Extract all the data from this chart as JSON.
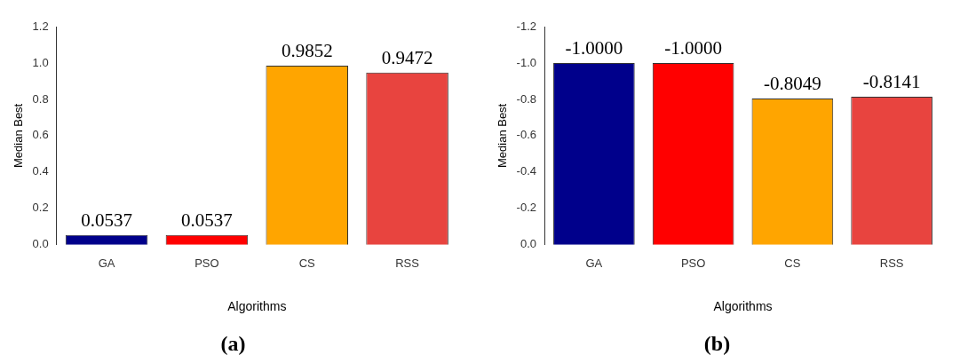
{
  "chart_data": [
    {
      "type": "bar",
      "title": "(a)",
      "xlabel": "Algorithms",
      "ylabel": "Median Best",
      "categories": [
        "GA",
        "PSO",
        "CS",
        "RSS"
      ],
      "values": [
        0.0537,
        0.0537,
        0.9852,
        0.9472
      ],
      "colors": [
        "#00008b",
        "#ff0000",
        "#ffa500",
        "#e8443f"
      ],
      "value_labels": [
        "0.0537",
        "0.0537",
        "0.9852",
        "0.9472"
      ],
      "ylim": [
        0,
        1.2
      ],
      "yticks": [
        {
          "value": 0,
          "label": "0.0"
        },
        {
          "value": 0.2,
          "label": "0.2"
        },
        {
          "value": 0.4,
          "label": "0.4"
        },
        {
          "value": 0.6,
          "label": "0.6"
        },
        {
          "value": 0.8,
          "label": "0.8"
        },
        {
          "value": 1,
          "label": "1.0"
        },
        {
          "value": 1.2,
          "label": "1.2"
        }
      ],
      "grid": false,
      "legend": false
    },
    {
      "type": "bar",
      "title": "(b)",
      "xlabel": "Algorithms",
      "ylabel": "Median Best",
      "categories": [
        "GA",
        "PSO",
        "CS",
        "RSS"
      ],
      "values": [
        -1,
        -1,
        -0.8049,
        -0.8141
      ],
      "colors": [
        "#00008b",
        "#ff0000",
        "#ffa500",
        "#e8443f"
      ],
      "value_labels": [
        "-1.0000",
        "-1.0000",
        "-0.8049",
        "-0.8141"
      ],
      "ylim": [
        0,
        -1.2
      ],
      "yticks": [
        {
          "value": 0,
          "label": "0.0"
        },
        {
          "value": -0.2,
          "label": "-0.2"
        },
        {
          "value": -0.4,
          "label": "-0.4"
        },
        {
          "value": -0.6,
          "label": "-0.6"
        },
        {
          "value": -0.8,
          "label": "-0.8"
        },
        {
          "value": -1,
          "label": "-1.0"
        },
        {
          "value": -1.2,
          "label": "-1.2"
        }
      ],
      "grid": false,
      "legend": false
    }
  ]
}
